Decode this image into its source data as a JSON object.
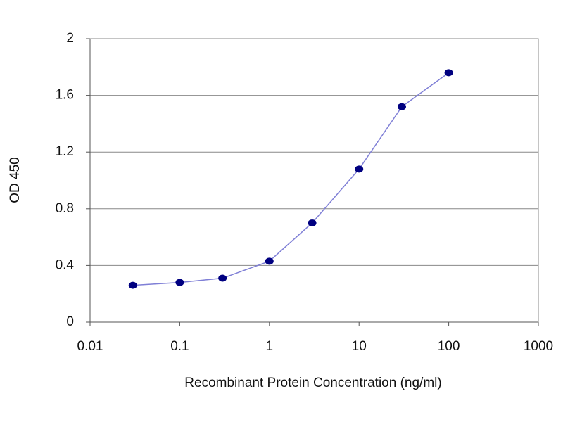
{
  "chart_data": {
    "type": "line",
    "xlabel": "Recombinant Protein Concentration (ng/ml)",
    "ylabel": "OD 450",
    "x": [
      0.03,
      0.1,
      0.3,
      1,
      3,
      10,
      30,
      100
    ],
    "series": [
      {
        "color": "#000080",
        "line_color": "#7f7fd6",
        "values": [
          0.26,
          0.28,
          0.31,
          0.43,
          0.7,
          1.08,
          1.52,
          1.76
        ]
      }
    ],
    "xscale": "log",
    "xlim": [
      0.01,
      1000
    ],
    "xticks": [
      0.01,
      0.1,
      1,
      10,
      100,
      1000
    ],
    "ylim": [
      0,
      2
    ],
    "yticks": [
      0,
      0.4,
      0.8,
      1.2,
      1.6,
      2
    ],
    "grid": true
  }
}
